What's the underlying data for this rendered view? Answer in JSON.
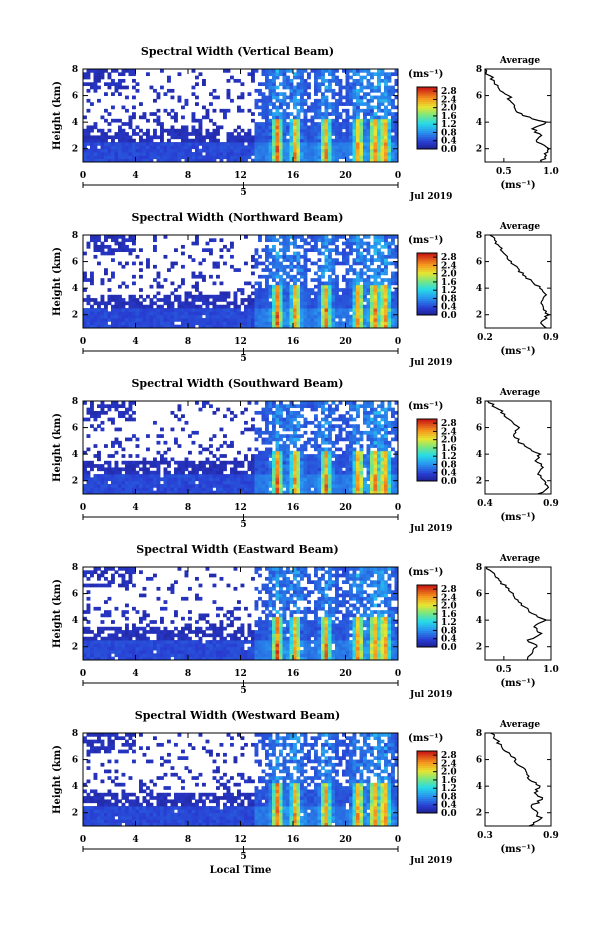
{
  "chart_data": [
    {
      "type": "heatmap",
      "title": "Spectral Width (Vertical Beam)",
      "ylabel": "Height (km)",
      "y_ticks": [
        "2",
        "4",
        "6",
        "8"
      ],
      "ylim": [
        1,
        8
      ],
      "x_ticks": [
        "0",
        "4",
        "8",
        "12",
        "16",
        "20",
        "0"
      ],
      "xlim": [
        0,
        24
      ],
      "date_tick": "5",
      "date_label": "Jul 2019",
      "colorbar_label": "(ms⁻¹)",
      "colorbar_ticks": [
        "0.0",
        "0.4",
        "0.8",
        "1.2",
        "1.6",
        "2.0",
        "2.4",
        "2.8"
      ],
      "colorbar_range": [
        0.0,
        3.0
      ],
      "profile": {
        "title": "Average",
        "xlabel": "(ms⁻¹)",
        "x_ticks": [
          "0.5",
          "1.0"
        ],
        "xlim": [
          0.3,
          1.0
        ],
        "y_ticks": [
          "2",
          "4",
          "6",
          "8"
        ],
        "ylim": [
          1,
          8
        ],
        "heights": [
          1.0,
          1.5,
          2.0,
          2.5,
          3.0,
          3.5,
          4.0,
          4.5,
          5.0,
          5.5,
          6.0,
          6.5,
          7.0,
          7.5,
          8.0
        ],
        "values": [
          0.9,
          0.95,
          0.98,
          0.85,
          0.9,
          0.8,
          0.95,
          0.7,
          0.62,
          0.58,
          0.55,
          0.45,
          0.4,
          0.35,
          0.3
        ]
      }
    },
    {
      "type": "heatmap",
      "title": "Spectral Width (Northward Beam)",
      "ylabel": "Height (km)",
      "y_ticks": [
        "2",
        "4",
        "6",
        "8"
      ],
      "ylim": [
        1,
        8
      ],
      "x_ticks": [
        "0",
        "4",
        "8",
        "12",
        "16",
        "20",
        "0"
      ],
      "xlim": [
        0,
        24
      ],
      "date_tick": "5",
      "date_label": "Jul 2019",
      "colorbar_label": "(ms⁻¹)",
      "colorbar_ticks": [
        "0.0",
        "0.4",
        "0.8",
        "1.2",
        "1.6",
        "2.0",
        "2.4",
        "2.8"
      ],
      "colorbar_range": [
        0.0,
        3.0
      ],
      "profile": {
        "title": "Average",
        "xlabel": "(ms⁻¹)",
        "x_ticks": [
          "0.2",
          "0.9"
        ],
        "xlim": [
          0.2,
          0.9
        ],
        "y_ticks": [
          "2",
          "4",
          "6",
          "8"
        ],
        "ylim": [
          1,
          8
        ],
        "heights": [
          1.0,
          1.5,
          2.0,
          2.5,
          3.0,
          3.5,
          4.0,
          4.5,
          5.0,
          5.5,
          6.0,
          6.5,
          7.0,
          7.5,
          8.0
        ],
        "values": [
          0.85,
          0.8,
          0.88,
          0.82,
          0.8,
          0.85,
          0.78,
          0.7,
          0.6,
          0.55,
          0.48,
          0.42,
          0.38,
          0.32,
          0.25
        ]
      }
    },
    {
      "type": "heatmap",
      "title": "Spectral Width (Southward Beam)",
      "ylabel": "Height (km)",
      "y_ticks": [
        "2",
        "4",
        "6",
        "8"
      ],
      "ylim": [
        1,
        8
      ],
      "x_ticks": [
        "0",
        "4",
        "8",
        "12",
        "16",
        "20",
        "0"
      ],
      "xlim": [
        0,
        24
      ],
      "date_tick": "5",
      "date_label": "Jul 2019",
      "colorbar_label": "(ms⁻¹)",
      "colorbar_ticks": [
        "0.0",
        "0.4",
        "0.8",
        "1.2",
        "1.6",
        "2.0",
        "2.4",
        "2.8"
      ],
      "colorbar_range": [
        0.0,
        3.0
      ],
      "profile": {
        "title": "Average",
        "xlabel": "(ms⁻¹)",
        "x_ticks": [
          "0.4",
          "0.9"
        ],
        "xlim": [
          0.4,
          0.9
        ],
        "y_ticks": [
          "2",
          "4",
          "6",
          "8"
        ],
        "ylim": [
          1,
          8
        ],
        "heights": [
          1.0,
          1.5,
          2.0,
          2.5,
          3.0,
          3.5,
          4.0,
          4.5,
          5.0,
          5.5,
          6.0,
          6.5,
          7.0,
          7.5,
          8.0
        ],
        "values": [
          0.8,
          0.88,
          0.85,
          0.8,
          0.84,
          0.78,
          0.82,
          0.72,
          0.65,
          0.62,
          0.66,
          0.6,
          0.55,
          0.48,
          0.42
        ]
      }
    },
    {
      "type": "heatmap",
      "title": "Spectral Width (Eastward Beam)",
      "ylabel": "Height (km)",
      "y_ticks": [
        "2",
        "4",
        "6",
        "8"
      ],
      "ylim": [
        1,
        8
      ],
      "x_ticks": [
        "0",
        "4",
        "8",
        "12",
        "16",
        "20",
        "0"
      ],
      "xlim": [
        0,
        24
      ],
      "date_tick": "5",
      "date_label": "Jul 2019",
      "colorbar_label": "(ms⁻¹)",
      "colorbar_ticks": [
        "0.0",
        "0.4",
        "0.8",
        "1.2",
        "1.6",
        "2.0",
        "2.4",
        "2.8"
      ],
      "colorbar_range": [
        0.0,
        3.0
      ],
      "profile": {
        "title": "Average",
        "xlabel": "(ms⁻¹)",
        "x_ticks": [
          "0.5",
          "1.0"
        ],
        "xlim": [
          0.3,
          1.0
        ],
        "y_ticks": [
          "2",
          "4",
          "6",
          "8"
        ],
        "ylim": [
          1,
          8
        ],
        "heights": [
          1.0,
          1.5,
          2.0,
          2.5,
          3.0,
          3.5,
          4.0,
          4.5,
          5.0,
          5.5,
          6.0,
          6.5,
          7.0,
          7.5,
          8.0
        ],
        "values": [
          0.75,
          0.8,
          0.85,
          0.75,
          0.9,
          0.82,
          0.95,
          0.8,
          0.72,
          0.65,
          0.6,
          0.52,
          0.45,
          0.4,
          0.32
        ]
      }
    },
    {
      "type": "heatmap",
      "title": "Spectral Width (Westward Beam)",
      "ylabel": "Height (km)",
      "y_ticks": [
        "2",
        "4",
        "6",
        "8"
      ],
      "ylim": [
        1,
        8
      ],
      "x_ticks": [
        "0",
        "4",
        "8",
        "12",
        "16",
        "20",
        "0"
      ],
      "xlim": [
        0,
        24
      ],
      "date_tick": "5",
      "date_label": "Jul 2019",
      "xlabel": "Local Time",
      "colorbar_label": "(ms⁻¹)",
      "colorbar_ticks": [
        "0.0",
        "0.4",
        "0.8",
        "1.2",
        "1.6",
        "2.0",
        "2.4",
        "2.8"
      ],
      "colorbar_range": [
        0.0,
        3.0
      ],
      "profile": {
        "title": "Average",
        "xlabel": "(ms⁻¹)",
        "x_ticks": [
          "0.3",
          "0.9"
        ],
        "xlim": [
          0.3,
          0.9
        ],
        "y_ticks": [
          "2",
          "4",
          "6",
          "8"
        ],
        "ylim": [
          1,
          8
        ],
        "heights": [
          1.0,
          1.5,
          2.0,
          2.5,
          3.0,
          3.5,
          4.0,
          4.5,
          5.0,
          5.5,
          6.0,
          6.5,
          7.0,
          7.5,
          8.0
        ],
        "values": [
          0.7,
          0.8,
          0.78,
          0.72,
          0.82,
          0.75,
          0.8,
          0.7,
          0.68,
          0.62,
          0.58,
          0.52,
          0.45,
          0.4,
          0.35
        ]
      }
    }
  ]
}
